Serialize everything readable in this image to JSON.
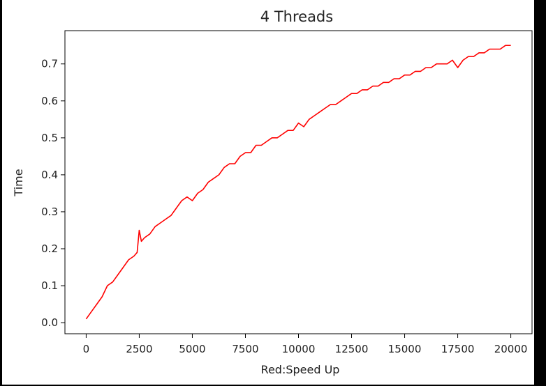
{
  "chart_data": {
    "type": "line",
    "title": "4 Threads",
    "xlabel": "Red:Speed Up",
    "ylabel": "Time",
    "xlim": [
      -1000,
      21000
    ],
    "ylim": [
      -0.03,
      0.79
    ],
    "x_ticks": [
      0,
      2500,
      5000,
      7500,
      10000,
      12500,
      15000,
      17500,
      20000
    ],
    "x_tick_labels": [
      "0",
      "2500",
      "5000",
      "7500",
      "10000",
      "12500",
      "15000",
      "17500",
      "20000"
    ],
    "y_ticks": [
      0.0,
      0.1,
      0.2,
      0.3,
      0.4,
      0.5,
      0.6,
      0.7
    ],
    "y_tick_labels": [
      "0.0",
      "0.1",
      "0.2",
      "0.3",
      "0.4",
      "0.5",
      "0.6",
      "0.7"
    ],
    "grid": false,
    "series": [
      {
        "color": "#ff0000",
        "x": [
          0,
          250,
          500,
          750,
          1000,
          1250,
          1500,
          1750,
          2000,
          2250,
          2400,
          2500,
          2600,
          2750,
          3000,
          3250,
          3500,
          3750,
          4000,
          4250,
          4500,
          4750,
          5000,
          5250,
          5500,
          5750,
          6000,
          6250,
          6500,
          6750,
          7000,
          7250,
          7500,
          7750,
          8000,
          8250,
          8500,
          8750,
          9000,
          9250,
          9500,
          9750,
          10000,
          10250,
          10500,
          10750,
          11000,
          11250,
          11500,
          11750,
          12000,
          12250,
          12500,
          12750,
          13000,
          13250,
          13500,
          13750,
          14000,
          14250,
          14500,
          14750,
          15000,
          15250,
          15500,
          15750,
          16000,
          16250,
          16500,
          16750,
          17000,
          17250,
          17500,
          17750,
          18000,
          18250,
          18500,
          18750,
          19000,
          19250,
          19500,
          19750,
          20000
        ],
        "y": [
          0.01,
          0.03,
          0.05,
          0.07,
          0.1,
          0.11,
          0.13,
          0.15,
          0.17,
          0.18,
          0.19,
          0.25,
          0.22,
          0.23,
          0.24,
          0.26,
          0.27,
          0.28,
          0.29,
          0.31,
          0.33,
          0.34,
          0.33,
          0.35,
          0.36,
          0.38,
          0.39,
          0.4,
          0.42,
          0.43,
          0.43,
          0.45,
          0.46,
          0.46,
          0.48,
          0.48,
          0.49,
          0.5,
          0.5,
          0.51,
          0.52,
          0.52,
          0.54,
          0.53,
          0.55,
          0.56,
          0.57,
          0.58,
          0.59,
          0.59,
          0.6,
          0.61,
          0.62,
          0.62,
          0.63,
          0.63,
          0.64,
          0.64,
          0.65,
          0.65,
          0.66,
          0.66,
          0.67,
          0.67,
          0.68,
          0.68,
          0.69,
          0.69,
          0.7,
          0.7,
          0.7,
          0.71,
          0.69,
          0.71,
          0.72,
          0.72,
          0.73,
          0.73,
          0.74,
          0.74,
          0.74,
          0.75,
          0.75
        ]
      }
    ]
  }
}
